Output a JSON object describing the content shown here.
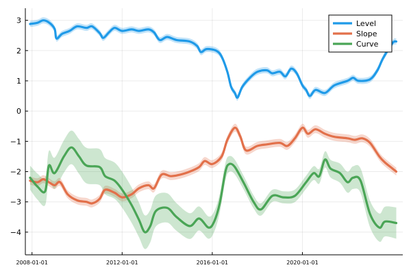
{
  "chart_data": {
    "type": "line",
    "title": "",
    "xlabel": "",
    "ylabel": "",
    "x_type": "date",
    "xlim": [
      "2007-09-15",
      "2024-06-15"
    ],
    "ylim": [
      -4.75,
      3.4
    ],
    "grid": true,
    "legend_position": "top-right",
    "x_ticks": [
      "2008-01-01",
      "2012-01-01",
      "2016-01-01",
      "2020-01-01"
    ],
    "y_ticks": [
      -4,
      -3,
      -2,
      -1,
      0,
      1,
      2,
      3
    ],
    "series": [
      {
        "name": "Level",
        "color": "#1f9ae8",
        "band_halfwidth": 0.1,
        "points": [
          [
            "2007-12-01",
            2.88
          ],
          [
            "2008-04-01",
            2.92
          ],
          [
            "2008-07-01",
            3.0
          ],
          [
            "2008-10-01",
            2.93
          ],
          [
            "2009-01-01",
            2.72
          ],
          [
            "2009-02-01",
            2.4
          ],
          [
            "2009-05-01",
            2.55
          ],
          [
            "2009-09-01",
            2.65
          ],
          [
            "2010-01-01",
            2.8
          ],
          [
            "2010-06-01",
            2.75
          ],
          [
            "2010-09-01",
            2.8
          ],
          [
            "2011-01-01",
            2.58
          ],
          [
            "2011-03-01",
            2.42
          ],
          [
            "2011-06-01",
            2.6
          ],
          [
            "2011-09-01",
            2.75
          ],
          [
            "2012-01-01",
            2.65
          ],
          [
            "2012-06-01",
            2.7
          ],
          [
            "2012-10-01",
            2.65
          ],
          [
            "2013-03-01",
            2.7
          ],
          [
            "2013-06-01",
            2.6
          ],
          [
            "2013-09-01",
            2.35
          ],
          [
            "2014-01-01",
            2.45
          ],
          [
            "2014-06-01",
            2.35
          ],
          [
            "2015-01-01",
            2.3
          ],
          [
            "2015-05-01",
            2.15
          ],
          [
            "2015-07-01",
            1.95
          ],
          [
            "2015-10-01",
            2.05
          ],
          [
            "2016-03-01",
            2.0
          ],
          [
            "2016-06-01",
            1.8
          ],
          [
            "2016-09-01",
            1.3
          ],
          [
            "2016-11-01",
            0.8
          ],
          [
            "2017-01-01",
            0.6
          ],
          [
            "2017-02-15",
            0.45
          ],
          [
            "2017-05-01",
            0.8
          ],
          [
            "2017-09-01",
            1.1
          ],
          [
            "2018-01-01",
            1.3
          ],
          [
            "2018-06-01",
            1.35
          ],
          [
            "2018-09-01",
            1.25
          ],
          [
            "2019-01-01",
            1.3
          ],
          [
            "2019-04-01",
            1.15
          ],
          [
            "2019-07-01",
            1.4
          ],
          [
            "2019-10-01",
            1.25
          ],
          [
            "2020-01-01",
            0.85
          ],
          [
            "2020-03-01",
            0.7
          ],
          [
            "2020-05-01",
            0.5
          ],
          [
            "2020-08-01",
            0.7
          ],
          [
            "2021-01-01",
            0.6
          ],
          [
            "2021-06-01",
            0.85
          ],
          [
            "2022-01-01",
            1.0
          ],
          [
            "2022-04-01",
            1.1
          ],
          [
            "2022-07-01",
            1.0
          ],
          [
            "2023-01-01",
            1.05
          ],
          [
            "2023-05-01",
            1.35
          ],
          [
            "2023-08-01",
            1.75
          ],
          [
            "2024-01-01",
            2.25
          ],
          [
            "2024-03-01",
            2.3
          ]
        ]
      },
      {
        "name": "Slope",
        "color": "#e2704a",
        "band_halfwidth": 0.13,
        "points": [
          [
            "2007-12-01",
            -2.3
          ],
          [
            "2008-04-01",
            -2.35
          ],
          [
            "2008-07-01",
            -2.25
          ],
          [
            "2008-10-01",
            -2.35
          ],
          [
            "2009-01-01",
            -2.45
          ],
          [
            "2009-04-01",
            -2.35
          ],
          [
            "2009-08-01",
            -2.75
          ],
          [
            "2010-01-01",
            -2.95
          ],
          [
            "2010-06-01",
            -3.0
          ],
          [
            "2010-09-01",
            -3.05
          ],
          [
            "2011-01-01",
            -2.9
          ],
          [
            "2011-04-01",
            -2.6
          ],
          [
            "2011-09-01",
            -2.7
          ],
          [
            "2012-01-01",
            -2.85
          ],
          [
            "2012-06-01",
            -2.75
          ],
          [
            "2012-10-01",
            -2.55
          ],
          [
            "2013-03-01",
            -2.45
          ],
          [
            "2013-06-01",
            -2.55
          ],
          [
            "2013-10-01",
            -2.1
          ],
          [
            "2014-03-01",
            -2.15
          ],
          [
            "2014-08-01",
            -2.1
          ],
          [
            "2015-01-01",
            -2.0
          ],
          [
            "2015-06-01",
            -1.85
          ],
          [
            "2015-09-01",
            -1.65
          ],
          [
            "2016-01-01",
            -1.75
          ],
          [
            "2016-06-01",
            -1.5
          ],
          [
            "2016-09-01",
            -0.95
          ],
          [
            "2017-01-01",
            -0.55
          ],
          [
            "2017-04-01",
            -0.85
          ],
          [
            "2017-07-01",
            -1.3
          ],
          [
            "2018-01-01",
            -1.15
          ],
          [
            "2018-06-01",
            -1.1
          ],
          [
            "2019-01-01",
            -1.05
          ],
          [
            "2019-05-01",
            -1.15
          ],
          [
            "2019-09-01",
            -0.9
          ],
          [
            "2020-01-01",
            -0.55
          ],
          [
            "2020-04-01",
            -0.75
          ],
          [
            "2020-08-01",
            -0.6
          ],
          [
            "2021-01-01",
            -0.75
          ],
          [
            "2021-06-01",
            -0.85
          ],
          [
            "2022-01-01",
            -0.9
          ],
          [
            "2022-05-01",
            -0.95
          ],
          [
            "2022-09-01",
            -0.9
          ],
          [
            "2023-01-01",
            -1.05
          ],
          [
            "2023-06-01",
            -1.5
          ],
          [
            "2023-09-01",
            -1.7
          ],
          [
            "2024-01-01",
            -1.9
          ],
          [
            "2024-03-01",
            -2.0
          ]
        ]
      },
      {
        "name": "Curve",
        "color": "#4aa556",
        "band_halfwidth_min": 0.2,
        "band_halfwidth_max": 0.6,
        "points": [
          [
            "2007-12-01",
            -2.2
          ],
          [
            "2008-04-01",
            -2.5
          ],
          [
            "2008-08-01",
            -2.65
          ],
          [
            "2008-10-01",
            -1.8
          ],
          [
            "2009-01-01",
            -2.05
          ],
          [
            "2009-06-01",
            -1.5
          ],
          [
            "2009-10-01",
            -1.2
          ],
          [
            "2010-02-01",
            -1.5
          ],
          [
            "2010-06-01",
            -1.8
          ],
          [
            "2011-01-01",
            -1.85
          ],
          [
            "2011-04-01",
            -2.15
          ],
          [
            "2011-09-01",
            -2.3
          ],
          [
            "2012-01-01",
            -2.6
          ],
          [
            "2012-06-01",
            -3.1
          ],
          [
            "2012-10-01",
            -3.6
          ],
          [
            "2013-01-01",
            -4.0
          ],
          [
            "2013-04-01",
            -3.8
          ],
          [
            "2013-07-01",
            -3.3
          ],
          [
            "2014-01-01",
            -3.2
          ],
          [
            "2014-06-01",
            -3.5
          ],
          [
            "2015-01-01",
            -3.8
          ],
          [
            "2015-06-01",
            -3.55
          ],
          [
            "2015-11-01",
            -3.85
          ],
          [
            "2016-02-01",
            -3.65
          ],
          [
            "2016-05-01",
            -3.05
          ],
          [
            "2016-08-01",
            -2.0
          ],
          [
            "2016-10-01",
            -1.75
          ],
          [
            "2017-01-01",
            -1.85
          ],
          [
            "2017-06-01",
            -2.4
          ],
          [
            "2017-11-01",
            -3.0
          ],
          [
            "2018-03-01",
            -3.25
          ],
          [
            "2018-09-01",
            -2.8
          ],
          [
            "2019-03-01",
            -2.85
          ],
          [
            "2019-09-01",
            -2.8
          ],
          [
            "2020-03-01",
            -2.35
          ],
          [
            "2020-07-01",
            -2.05
          ],
          [
            "2020-10-01",
            -2.15
          ],
          [
            "2021-01-01",
            -1.6
          ],
          [
            "2021-04-01",
            -1.9
          ],
          [
            "2021-09-01",
            -2.05
          ],
          [
            "2022-01-01",
            -2.35
          ],
          [
            "2022-04-01",
            -2.2
          ],
          [
            "2022-08-01",
            -2.3
          ],
          [
            "2023-01-01",
            -3.4
          ],
          [
            "2023-06-01",
            -3.85
          ],
          [
            "2023-09-01",
            -3.65
          ],
          [
            "2024-03-01",
            -3.7
          ]
        ]
      }
    ]
  }
}
